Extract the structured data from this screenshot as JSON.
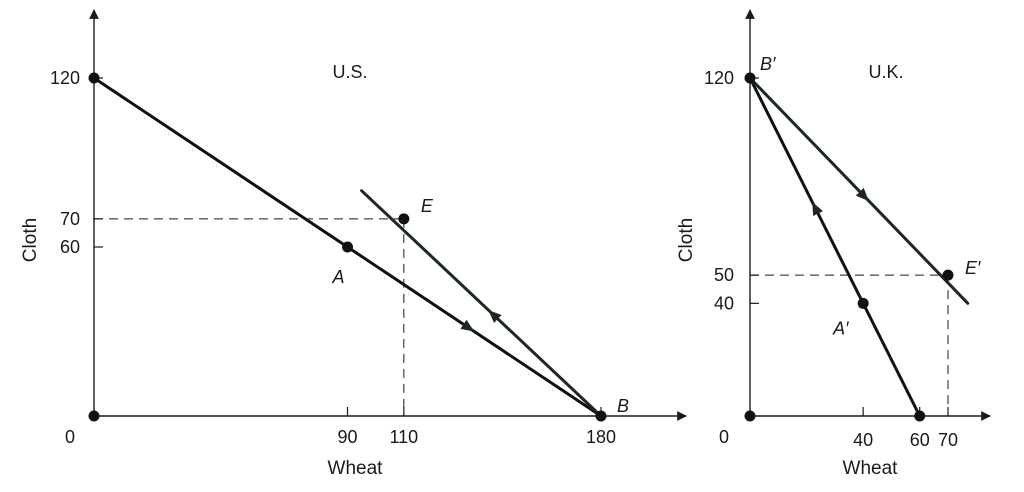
{
  "chart_data": [
    {
      "type": "line",
      "title": "U.S.",
      "xlabel": "Wheat",
      "ylabel": "Cloth",
      "origin_label": "0",
      "x_ticks": [
        90,
        110,
        180
      ],
      "y_ticks": [
        60,
        70,
        120
      ],
      "series": [
        {
          "points": [
            [
              0,
              120
            ],
            [
              180,
              0
            ]
          ],
          "arrow_direction": "toward B"
        },
        {
          "points": [
            [
              180,
              0
            ],
            [
              95,
              80
            ]
          ],
          "arrow_direction": "away from B"
        }
      ],
      "points": [
        {
          "label": "",
          "x": 0,
          "y": 120
        },
        {
          "label": "A",
          "x": 90,
          "y": 60
        },
        {
          "label": "E",
          "x": 110,
          "y": 70
        },
        {
          "label": "B",
          "x": 180,
          "y": 0
        },
        {
          "label": "",
          "x": 0,
          "y": 0
        }
      ],
      "guides": [
        {
          "x": 110,
          "y": 70
        }
      ]
    },
    {
      "type": "line",
      "title": "U.K.",
      "xlabel": "Wheat",
      "ylabel": "Cloth",
      "origin_label": "0",
      "x_ticks": [
        40,
        60,
        70
      ],
      "y_ticks": [
        40,
        50,
        120
      ],
      "series": [
        {
          "points": [
            [
              60,
              0
            ],
            [
              0,
              120
            ]
          ],
          "arrow_direction": "toward B'"
        },
        {
          "points": [
            [
              0,
              120
            ],
            [
              77,
              40
            ]
          ],
          "arrow_direction": "away from B'"
        }
      ],
      "points": [
        {
          "label": "B′",
          "x": 0,
          "y": 120
        },
        {
          "label": "A′",
          "x": 40,
          "y": 40
        },
        {
          "label": "E′",
          "x": 70,
          "y": 50
        },
        {
          "label": "",
          "x": 60,
          "y": 0
        },
        {
          "label": "",
          "x": 0,
          "y": 0
        }
      ],
      "guides": [
        {
          "x": 70,
          "y": 50
        }
      ]
    }
  ]
}
